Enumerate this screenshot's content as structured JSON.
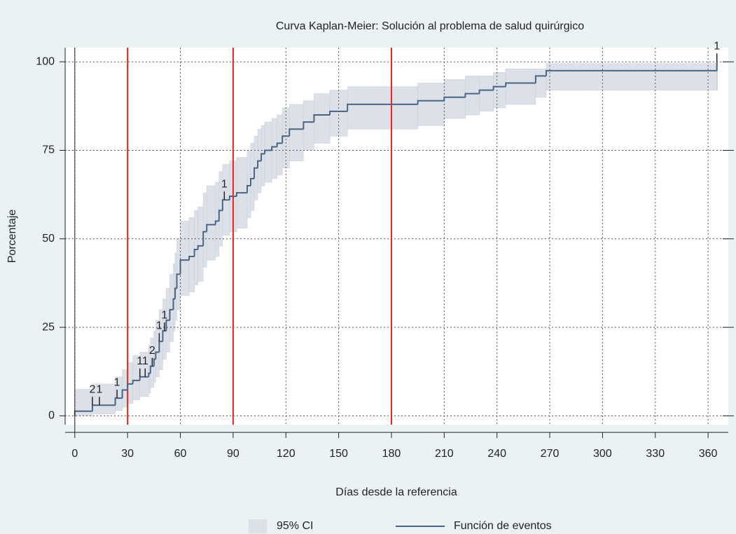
{
  "chart_data": {
    "type": "km-step",
    "title": "Curva Kaplan-Meier: Solución al problema de salud quirúrgico",
    "x_label": "Días desde la referencia",
    "y_label": "Porcentaje",
    "xlim": [
      -5.5,
      371.5
    ],
    "ylim": [
      -2.5,
      104
    ],
    "xticks": [
      0,
      30,
      60,
      90,
      120,
      150,
      180,
      210,
      240,
      270,
      300,
      330,
      360
    ],
    "yticks": [
      0,
      25,
      50,
      75,
      100
    ],
    "grid": true,
    "reference_lines": {
      "color": "#e8231c",
      "x": [
        30,
        90,
        180
      ]
    },
    "series": [
      {
        "name": "Función de eventos",
        "color": "#4a6584",
        "x": [
          0,
          10,
          23,
          27,
          30,
          33,
          37,
          42,
          43,
          45,
          46,
          48,
          50,
          52,
          54,
          56,
          57,
          58,
          60,
          65,
          68,
          70,
          73,
          75,
          80,
          82,
          84,
          88,
          92,
          98,
          100,
          102,
          104,
          106,
          108,
          112,
          115,
          118,
          122,
          130,
          136,
          145,
          155,
          195,
          210,
          222,
          230,
          238,
          245,
          262,
          268,
          365
        ],
        "values": [
          1.3,
          3,
          5,
          7.3,
          9,
          10,
          11,
          12,
          14,
          16,
          18,
          21,
          24,
          27,
          30,
          33,
          36,
          40,
          44,
          45,
          47,
          48,
          52,
          54,
          55,
          58,
          61,
          62,
          63,
          65,
          67,
          70,
          72,
          74,
          75,
          76,
          77,
          79,
          81,
          83,
          85,
          86,
          88,
          89,
          90,
          91,
          92,
          93,
          94,
          96,
          97.5,
          100
        ]
      }
    ],
    "ci": {
      "name": "95% CI",
      "color": "#dce1e9",
      "lower": [
        0,
        0.5,
        1.5,
        2.5,
        3.5,
        4.5,
        5.5,
        6.5,
        8,
        9.5,
        11,
        13,
        16,
        18,
        21,
        24,
        27,
        30,
        34,
        35,
        37,
        38,
        42,
        44,
        45,
        48,
        51,
        52,
        53,
        56,
        58,
        61,
        63,
        65,
        66,
        67,
        68,
        70,
        72,
        75,
        77,
        79,
        81,
        82,
        84,
        85,
        86,
        87,
        88,
        90,
        92,
        92
      ],
      "upper": [
        7.5,
        9,
        11,
        13,
        15,
        17,
        18,
        20,
        22,
        24,
        27,
        30,
        33,
        36,
        40,
        43,
        46,
        50,
        55,
        56,
        58,
        59,
        63,
        65,
        66,
        69,
        71,
        72,
        73,
        75,
        77,
        79,
        81,
        82,
        83,
        84,
        85,
        87,
        88,
        89,
        91,
        92,
        93,
        94,
        95,
        96,
        96,
        97,
        98,
        98,
        99.5,
        100
      ]
    },
    "censored": [
      {
        "x": 10,
        "y": 3,
        "count": 2
      },
      {
        "x": 14,
        "y": 3,
        "count": 1
      },
      {
        "x": 24,
        "y": 5,
        "count": 1
      },
      {
        "x": 37,
        "y": 11,
        "count": 1
      },
      {
        "x": 40,
        "y": 11,
        "count": 1
      },
      {
        "x": 44,
        "y": 14,
        "count": 2
      },
      {
        "x": 48,
        "y": 21,
        "count": 1
      },
      {
        "x": 51,
        "y": 24,
        "count": 1
      },
      {
        "x": 85,
        "y": 61,
        "count": 1
      },
      {
        "x": 365,
        "y": 100,
        "count": 1
      }
    ]
  }
}
